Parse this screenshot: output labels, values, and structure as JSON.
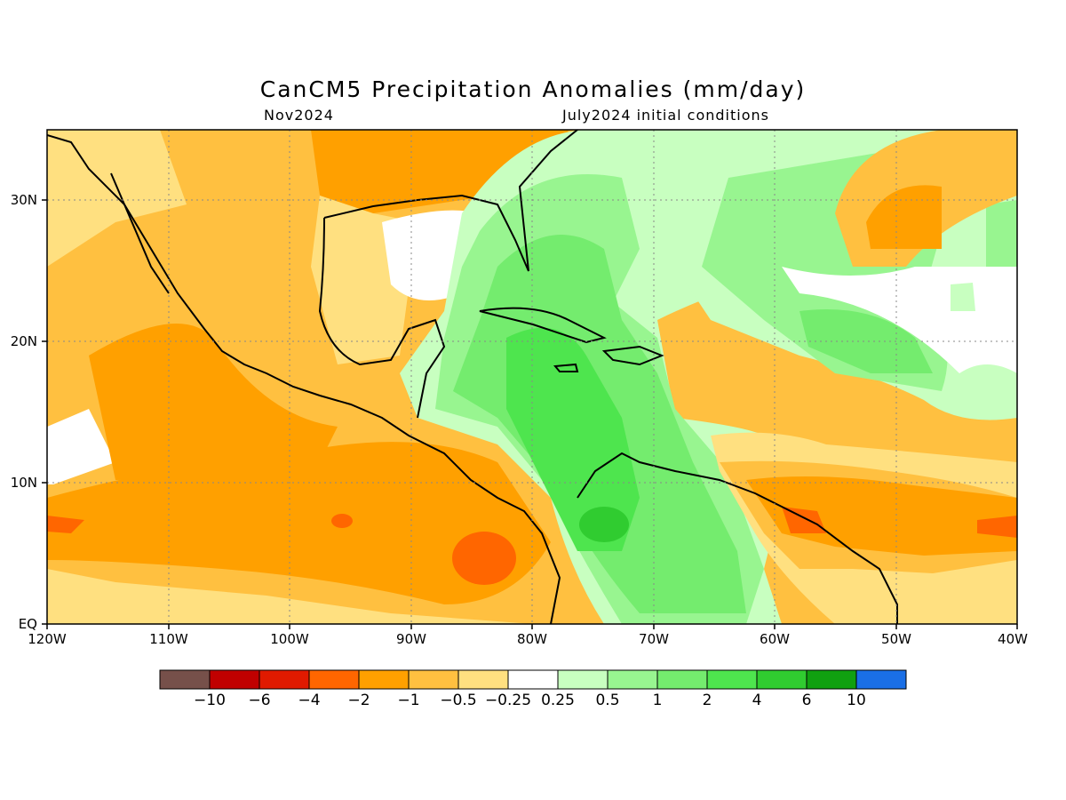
{
  "title": "CanCM5 Precipitation Anomalies (mm/day)",
  "subtitle_left": "Nov2024",
  "subtitle_right": "July2024 initial conditions",
  "map": {
    "lon_ticks": [
      "120W",
      "110W",
      "100W",
      "90W",
      "80W",
      "70W",
      "60W",
      "50W",
      "40W"
    ],
    "lat_ticks": [
      "30N",
      "20N",
      "10N",
      "EQ"
    ],
    "lon_range": [
      -120,
      -40
    ],
    "lat_range": [
      0,
      35
    ],
    "grid": true
  },
  "colorbar": {
    "colors": [
      "#76504a",
      "#c00000",
      "#e01a00",
      "#ff6600",
      "#ffa000",
      "#ffc040",
      "#ffe080",
      "#ffffff",
      "#c8ffc0",
      "#98f590",
      "#74ec6e",
      "#4ee54e",
      "#30cc30",
      "#10a010",
      "#1a6fe6"
    ],
    "labels": [
      "−10",
      "−6",
      "−4",
      "−2",
      "−1",
      "−0.5",
      "−0.25",
      "0.25",
      "0.5",
      "1",
      "2",
      "4",
      "6",
      "10"
    ]
  }
}
